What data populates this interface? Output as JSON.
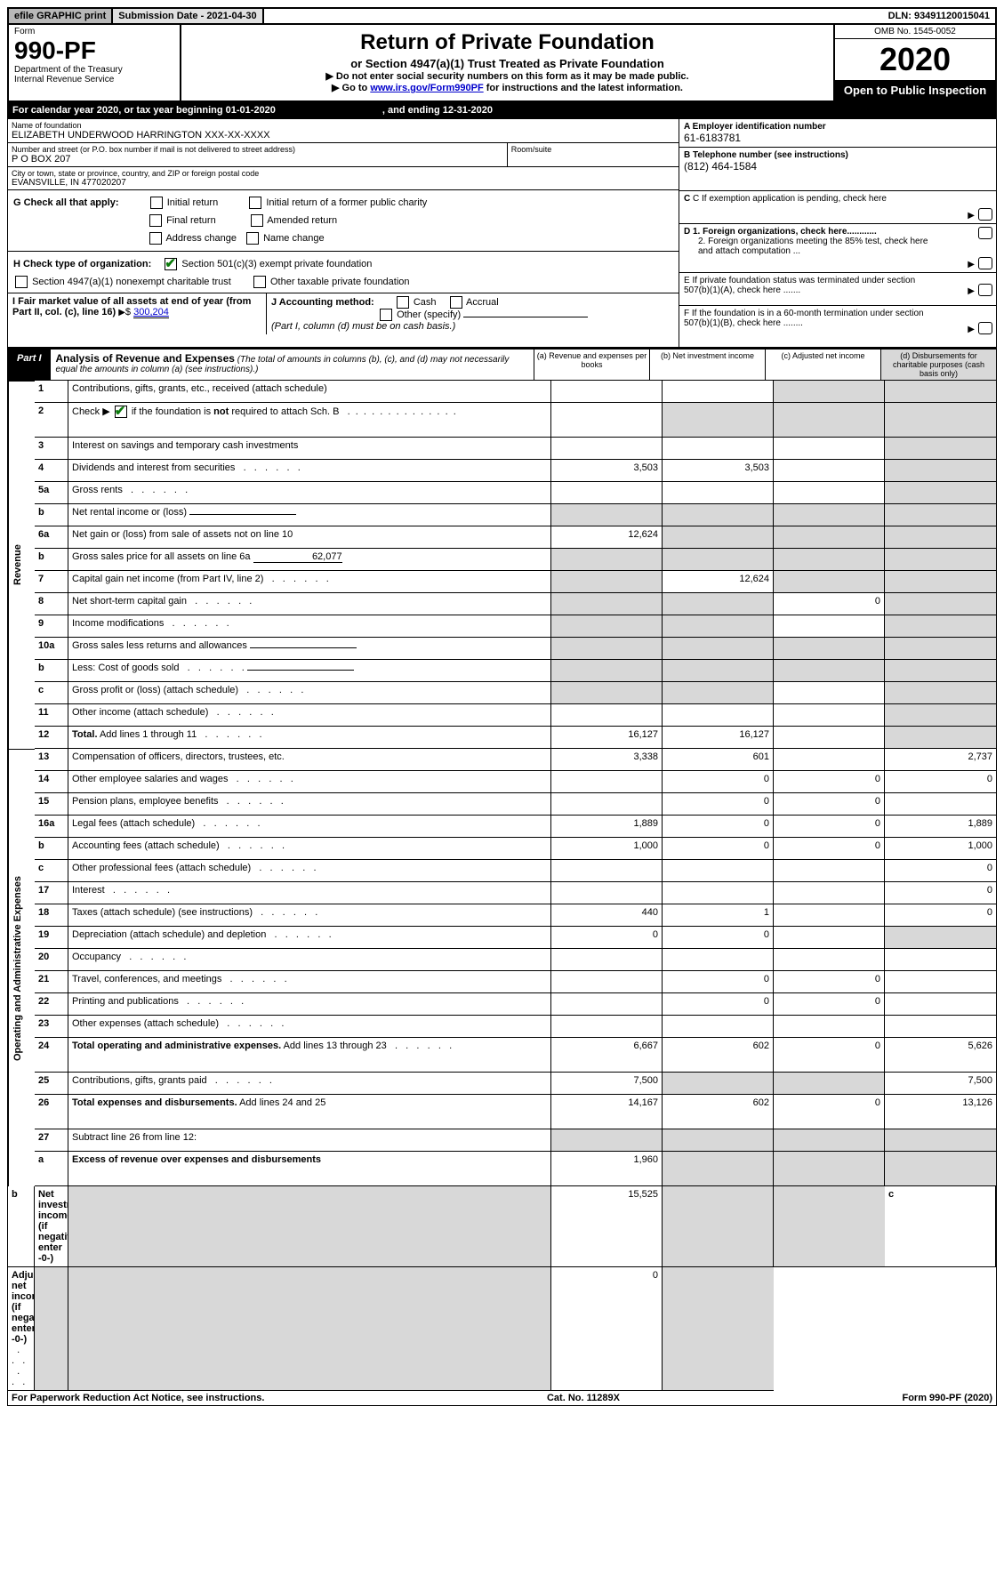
{
  "topbar": {
    "efile": "efile GRAPHIC print",
    "subdate_label": "Submission Date - 2021-04-30",
    "dln": "DLN: 93491120015041"
  },
  "header": {
    "form_word": "Form",
    "form_no": "990-PF",
    "dept": "Department of the Treasury",
    "irs": "Internal Revenue Service",
    "title": "Return of Private Foundation",
    "subtitle": "or Section 4947(a)(1) Trust Treated as Private Foundation",
    "note1": "▶ Do not enter social security numbers on this form as it may be made public.",
    "note2_pre": "▶ Go to ",
    "note2_link": "www.irs.gov/Form990PF",
    "note2_post": " for instructions and the latest information.",
    "omb": "OMB No. 1545-0052",
    "year": "2020",
    "open": "Open to Public Inspection"
  },
  "calyear": {
    "pre": "For calendar year 2020, or tax year beginning 01-01-2020",
    "end": ", and ending 12-31-2020"
  },
  "info": {
    "name_label": "Name of foundation",
    "name": "ELIZABETH UNDERWOOD HARRINGTON XXX-XX-XXXX",
    "addr_label": "Number and street (or P.O. box number if mail is not delivered to street address)",
    "addr": "P O BOX 207",
    "room_label": "Room/suite",
    "city_label": "City or town, state or province, country, and ZIP or foreign postal code",
    "city": "EVANSVILLE, IN  477020207",
    "a_label": "A Employer identification number",
    "a_val": "61-6183781",
    "b_label": "B Telephone number (see instructions)",
    "b_val": "(812) 464-1584",
    "c_label": "C If exemption application is pending, check here",
    "d1": "D 1. Foreign organizations, check here............",
    "d2": "2. Foreign organizations meeting the 85% test, check here and attach computation ...",
    "e": "E If private foundation status was terminated under section 507(b)(1)(A), check here .......",
    "f": "F If the foundation is in a 60-month termination under section 507(b)(1)(B), check here ........"
  },
  "g": {
    "label": "G Check all that apply:",
    "opts": [
      "Initial return",
      "Initial return of a former public charity",
      "Final return",
      "Amended return",
      "Address change",
      "Name change"
    ]
  },
  "h": {
    "label": "H Check type of organization:",
    "o1": "Section 501(c)(3) exempt private foundation",
    "o2": "Section 4947(a)(1) nonexempt charitable trust",
    "o3": "Other taxable private foundation"
  },
  "i": {
    "label": "I Fair market value of all assets at end of year (from Part II, col. (c), line 16)",
    "val": "300,204"
  },
  "j": {
    "label": "J Accounting method:",
    "cash": "Cash",
    "accrual": "Accrual",
    "other": "Other (specify)",
    "note": "(Part I, column (d) must be on cash basis.)"
  },
  "part1": {
    "tag": "Part I",
    "title": "Analysis of Revenue and Expenses",
    "note": "(The total of amounts in columns (b), (c), and (d) may not necessarily equal the amounts in column (a) (see instructions).)",
    "cols": {
      "a": "(a)   Revenue and expenses per books",
      "b": "(b)   Net investment income",
      "c": "(c)   Adjusted net income",
      "d": "(d)   Disbursements for charitable purposes (cash basis only)"
    }
  },
  "vcat": {
    "rev": "Revenue",
    "exp": "Operating and Administrative Expenses"
  },
  "rows": [
    {
      "n": "1",
      "d": "Contributions, gifts, grants, etc., received (attach schedule)",
      "a": "",
      "b": "",
      "c": "s",
      "dd": "s"
    },
    {
      "n": "2",
      "d": "Check ▶ ☑ if the foundation is not required to attach Sch. B",
      "dots": true,
      "a": "",
      "b": "s",
      "c": "s",
      "dd": "s",
      "tall": true,
      "bold_not": true
    },
    {
      "n": "3",
      "d": "Interest on savings and temporary cash investments",
      "a": "",
      "b": "",
      "c": "",
      "dd": "s"
    },
    {
      "n": "4",
      "d": "Dividends and interest from securities",
      "dots": true,
      "a": "3,503",
      "b": "3,503",
      "c": "",
      "dd": "s"
    },
    {
      "n": "5a",
      "d": "Gross rents",
      "dots": true,
      "a": "",
      "b": "",
      "c": "",
      "dd": "s"
    },
    {
      "n": "b",
      "d": "Net rental income or (loss)",
      "inline": true,
      "a": "s",
      "b": "s",
      "c": "s",
      "dd": "s"
    },
    {
      "n": "6a",
      "d": "Net gain or (loss) from sale of assets not on line 10",
      "a": "12,624",
      "b": "s",
      "c": "s",
      "dd": "s"
    },
    {
      "n": "b",
      "d": "Gross sales price for all assets on line 6a",
      "inline_val": "62,077",
      "a": "s",
      "b": "s",
      "c": "s",
      "dd": "s"
    },
    {
      "n": "7",
      "d": "Capital gain net income (from Part IV, line 2)",
      "dots": true,
      "a": "s",
      "b": "12,624",
      "c": "s",
      "dd": "s"
    },
    {
      "n": "8",
      "d": "Net short-term capital gain",
      "dots": true,
      "a": "s",
      "b": "s",
      "c": "0",
      "dd": "s"
    },
    {
      "n": "9",
      "d": "Income modifications",
      "dots": true,
      "a": "s",
      "b": "s",
      "c": "",
      "dd": "s"
    },
    {
      "n": "10a",
      "d": "Gross sales less returns and allowances",
      "inline": true,
      "a": "s",
      "b": "s",
      "c": "s",
      "dd": "s"
    },
    {
      "n": "b",
      "d": "Less: Cost of goods sold",
      "dots": true,
      "inline": true,
      "a": "s",
      "b": "s",
      "c": "s",
      "dd": "s"
    },
    {
      "n": "c",
      "d": "Gross profit or (loss) (attach schedule)",
      "dots": true,
      "a": "s",
      "b": "s",
      "c": "",
      "dd": "s"
    },
    {
      "n": "11",
      "d": "Other income (attach schedule)",
      "dots": true,
      "a": "",
      "b": "",
      "c": "",
      "dd": "s"
    },
    {
      "n": "12",
      "d": "Total. Add lines 1 through 11",
      "dots": true,
      "bold": true,
      "a": "16,127",
      "b": "16,127",
      "c": "",
      "dd": "s"
    },
    {
      "n": "13",
      "d": "Compensation of officers, directors, trustees, etc.",
      "a": "3,338",
      "b": "601",
      "c": "",
      "dd": "2,737"
    },
    {
      "n": "14",
      "d": "Other employee salaries and wages",
      "dots": true,
      "a": "",
      "b": "0",
      "c": "0",
      "dd": "0"
    },
    {
      "n": "15",
      "d": "Pension plans, employee benefits",
      "dots": true,
      "a": "",
      "b": "0",
      "c": "0",
      "dd": ""
    },
    {
      "n": "16a",
      "d": "Legal fees (attach schedule)",
      "dots": true,
      "a": "1,889",
      "b": "0",
      "c": "0",
      "dd": "1,889"
    },
    {
      "n": "b",
      "d": "Accounting fees (attach schedule)",
      "dots": true,
      "a": "1,000",
      "b": "0",
      "c": "0",
      "dd": "1,000"
    },
    {
      "n": "c",
      "d": "Other professional fees (attach schedule)",
      "dots": true,
      "a": "",
      "b": "",
      "c": "",
      "dd": "0"
    },
    {
      "n": "17",
      "d": "Interest",
      "dots": true,
      "a": "",
      "b": "",
      "c": "",
      "dd": "0"
    },
    {
      "n": "18",
      "d": "Taxes (attach schedule) (see instructions)",
      "dots": true,
      "a": "440",
      "b": "1",
      "c": "",
      "dd": "0"
    },
    {
      "n": "19",
      "d": "Depreciation (attach schedule) and depletion",
      "dots": true,
      "a": "0",
      "b": "0",
      "c": "",
      "dd": "s"
    },
    {
      "n": "20",
      "d": "Occupancy",
      "dots": true,
      "a": "",
      "b": "",
      "c": "",
      "dd": ""
    },
    {
      "n": "21",
      "d": "Travel, conferences, and meetings",
      "dots": true,
      "a": "",
      "b": "0",
      "c": "0",
      "dd": ""
    },
    {
      "n": "22",
      "d": "Printing and publications",
      "dots": true,
      "a": "",
      "b": "0",
      "c": "0",
      "dd": ""
    },
    {
      "n": "23",
      "d": "Other expenses (attach schedule)",
      "dots": true,
      "a": "",
      "b": "",
      "c": "",
      "dd": ""
    },
    {
      "n": "24",
      "d": "Total operating and administrative expenses. Add lines 13 through 23",
      "dots": true,
      "bold": true,
      "a": "6,667",
      "b": "602",
      "c": "0",
      "dd": "5,626",
      "tall": true
    },
    {
      "n": "25",
      "d": "Contributions, gifts, grants paid",
      "dots": true,
      "a": "7,500",
      "b": "s",
      "c": "s",
      "dd": "7,500"
    },
    {
      "n": "26",
      "d": "Total expenses and disbursements. Add lines 24 and 25",
      "bold": true,
      "a": "14,167",
      "b": "602",
      "c": "0",
      "dd": "13,126",
      "tall": true
    },
    {
      "n": "27",
      "d": "Subtract line 26 from line 12:",
      "a": "s",
      "b": "s",
      "c": "s",
      "dd": "s",
      "noBottom": true
    },
    {
      "n": "a",
      "d": "Excess of revenue over expenses and disbursements",
      "bold": true,
      "a": "1,960",
      "b": "s",
      "c": "s",
      "dd": "s",
      "tall": true
    },
    {
      "n": "b",
      "d": "Net investment income (if negative, enter -0-)",
      "bold": true,
      "a": "s",
      "b": "15,525",
      "c": "s",
      "dd": "s"
    },
    {
      "n": "c",
      "d": "Adjusted net income (if negative, enter -0-)",
      "dots": true,
      "bold": true,
      "a": "s",
      "b": "s",
      "c": "0",
      "dd": "s"
    }
  ],
  "footer": {
    "left": "For Paperwork Reduction Act Notice, see instructions.",
    "mid": "Cat. No. 11289X",
    "right": "Form 990-PF (2020)"
  }
}
